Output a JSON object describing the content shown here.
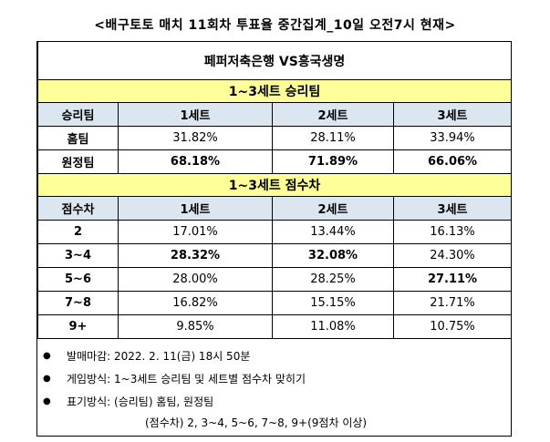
{
  "title": "<배구토토 매치 11회차 투표율 중간집계_10일 오전7시 현재>",
  "match": "페퍼저축은행 VS흥국생명",
  "sections": [
    {
      "title": "1~3세트 승리팀",
      "header": [
        "승리팀",
        "1세트",
        "2세트",
        "3세트"
      ],
      "rows": [
        {
          "label": "홈팀",
          "values": [
            "31.82%",
            "28.11%",
            "33.94%"
          ]
        },
        {
          "label": "원정팀",
          "values": [
            "68.18%",
            "71.89%",
            "66.06%"
          ]
        }
      ]
    },
    {
      "title": "1~3세트 점수차",
      "header": [
        "점수차",
        "1세트",
        "2세트",
        "3세트"
      ],
      "rows": [
        {
          "label": "2",
          "values": [
            "17.01%",
            "13.44%",
            "16.13%"
          ]
        },
        {
          "label": "3~4",
          "values": [
            "28.32%",
            "32.08%",
            "24.30%"
          ]
        },
        {
          "label": "5~6",
          "values": [
            "28.00%",
            "28.25%",
            "27.11%"
          ]
        },
        {
          "label": "7~8",
          "values": [
            "16.82%",
            "15.15%",
            "21.71%"
          ]
        },
        {
          "label": "9+",
          "values": [
            "9.85%",
            "11.08%",
            "10.75%"
          ]
        }
      ]
    }
  ],
  "notes": {
    "bullets": [
      "발매마감: 2022. 2. 11(금) 18시 50분",
      "게임방식: 1~3세트 승리팀 및 세트별 점수차 맞히기",
      "표기방식: (승리팀) 홈팀, 원정팀"
    ],
    "continuation": "(점수차) 2, 3~4, 5~6, 7~8, 9+(9점차 이상)"
  }
}
